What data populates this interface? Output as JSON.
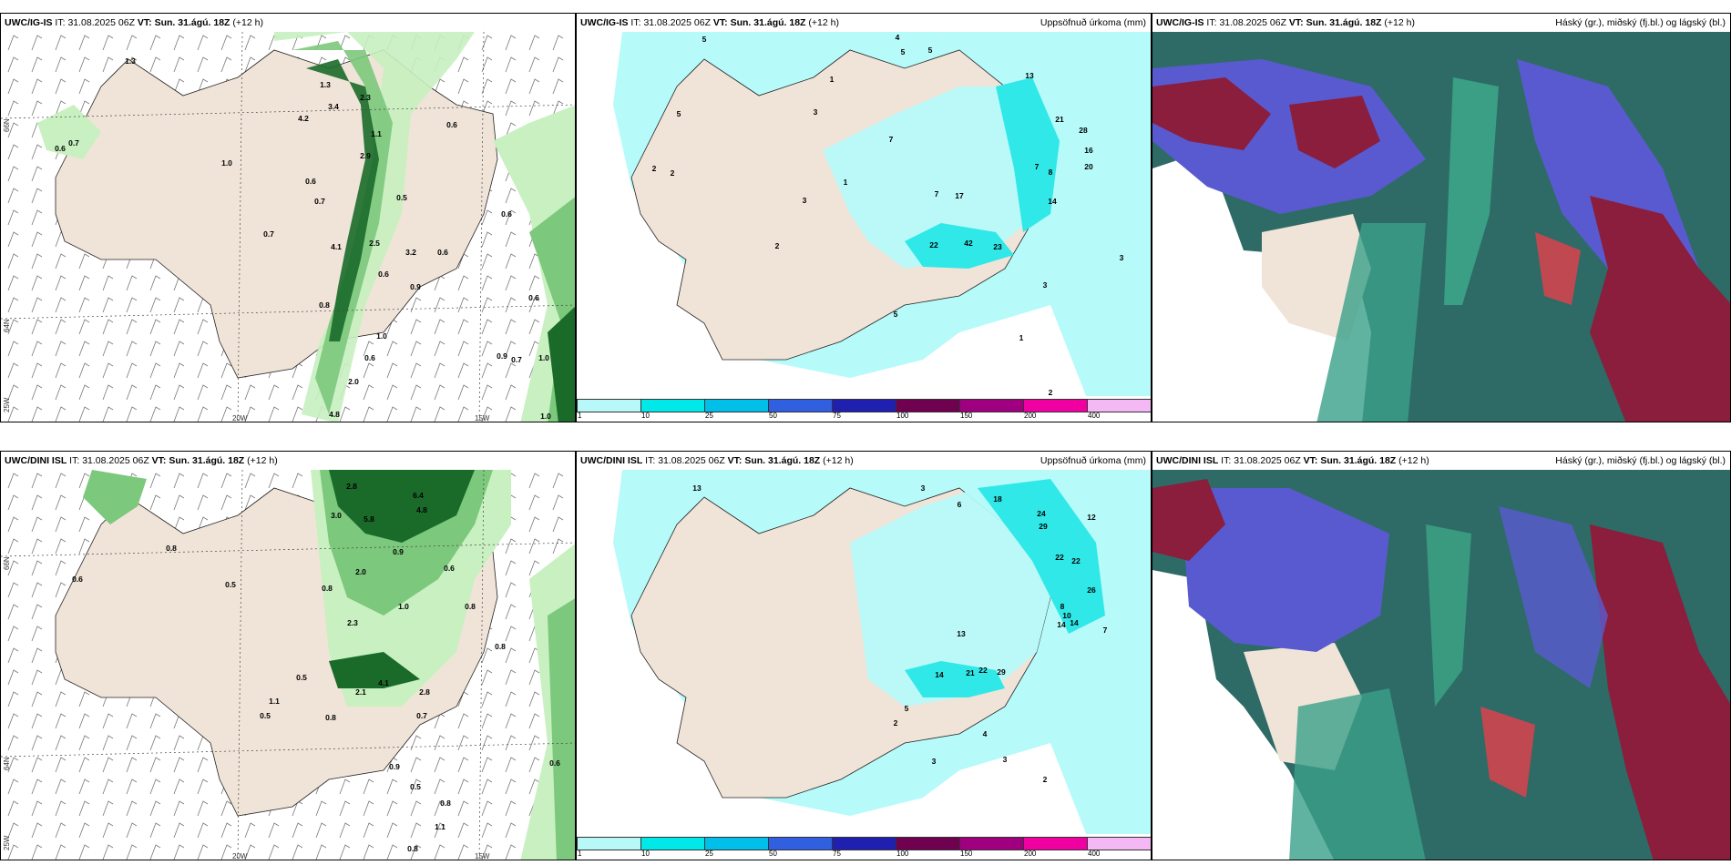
{
  "panels": [
    {
      "model": "UWC/IG-IS",
      "it_label": "IT:",
      "it": "31.08.2025 06Z",
      "vt_label": "VT:",
      "vt": "Sun. 31.ágú. 18Z",
      "lead": "(+12 h)",
      "right": ""
    },
    {
      "model": "UWC/IG-IS",
      "it_label": "IT:",
      "it": "31.08.2025 06Z",
      "vt_label": "VT:",
      "vt": "Sun. 31.ágú. 18Z",
      "lead": "(+12 h)",
      "right": "Uppsöfnuð úrkoma (mm)"
    },
    {
      "model": "UWC/IG-IS",
      "it_label": "IT:",
      "it": "31.08.2025 06Z",
      "vt_label": "VT:",
      "vt": "Sun. 31.ágú. 18Z",
      "lead": "(+12 h)",
      "right": "Háský (gr.), miðský (fj.bl.) og lágský (bl.)"
    },
    {
      "model": "UWC/DINI ISL",
      "it_label": "IT:",
      "it": "31.08.2025 06Z",
      "vt_label": "VT:",
      "vt": "Sun. 31.ágú. 18Z",
      "lead": "(+12 h)",
      "right": ""
    },
    {
      "model": "UWC/DINI ISL",
      "it_label": "IT:",
      "it": "31.08.2025 06Z",
      "vt_label": "VT:",
      "vt": "Sun. 31.ágú. 18Z",
      "lead": "(+12 h)",
      "right": "Uppsöfnuð úrkoma (mm)"
    },
    {
      "model": "UWC/DINI ISL",
      "it_label": "IT:",
      "it": "31.08.2025 06Z",
      "vt_label": "VT:",
      "vt": "Sun. 31.ágú. 18Z",
      "lead": "(+12 h)",
      "right": "Háský (gr.), miðský (fj.bl.) og lágský (bl.)"
    }
  ],
  "axes": {
    "lon_20": "20W",
    "lon_15": "15W",
    "lat_66": "66N",
    "lat_64": "64N",
    "lon_25": "25W"
  },
  "colorbar": {
    "labels": [
      "1",
      "10",
      "25",
      "50",
      "75",
      "100",
      "150",
      "200",
      "400"
    ],
    "colors": [
      "#b8f8f8",
      "#00e8e8",
      "#00bfe8",
      "#3060e0",
      "#2020b0",
      "#700050",
      "#a00080",
      "#f000a0",
      "#f4b8f4"
    ]
  },
  "colors": {
    "land": "#f0e4d8",
    "precip_light": "#b6fafa",
    "precip_mid": "#30e8e8",
    "green_light": "#c8f0c0",
    "green_mid": "#7cc87c",
    "green_dark": "#1a6a2a",
    "cloud_teal": "#2e6b66",
    "cloud_purple": "#5a5ad0",
    "cloud_red": "#8a1e3c"
  },
  "precip_top": [
    "5",
    "4",
    "5",
    "5",
    "3",
    "1",
    "7",
    "7",
    "2",
    "3",
    "5",
    "2",
    "1",
    "2",
    "13",
    "21",
    "28",
    "16",
    "20",
    "17",
    "14",
    "22",
    "42",
    "23",
    "8",
    "7",
    "3",
    "3",
    "1",
    "2",
    "5"
  ],
  "precip_bot": [
    "13",
    "3",
    "6",
    "18",
    "24",
    "29",
    "12",
    "22",
    "22",
    "26",
    "14",
    "14",
    "8",
    "10",
    "14",
    "21",
    "22",
    "29",
    "13",
    "7",
    "3",
    "4",
    "2",
    "3",
    "5",
    "2"
  ],
  "wind_top": [
    "0.6",
    "1.3",
    "0.7",
    "0.6",
    "1.0",
    "3.4",
    "4.2",
    "2.3",
    "2.9",
    "1.3",
    "0.6",
    "0.7",
    "1.1",
    "0.5",
    "0.7",
    "4.1",
    "2.5",
    "3.2",
    "0.6",
    "0.9",
    "0.6",
    "0.8",
    "1.0",
    "0.6",
    "2.0",
    "4.8",
    "0.6",
    "0.6",
    "0.9",
    "1.0",
    "0.7",
    "1.0"
  ],
  "wind_bot": [
    "2.8",
    "6.4",
    "4.8",
    "3.0",
    "5.8",
    "2.0",
    "0.8",
    "0.5",
    "0.8",
    "2.3",
    "1.0",
    "0.9",
    "0.6",
    "0.8",
    "0.5",
    "1.1",
    "2.1",
    "4.1",
    "2.8",
    "0.7",
    "0.9",
    "0.5",
    "0.8",
    "0.6",
    "0.8",
    "0.5",
    "0.8",
    "1.1",
    "0.8",
    "0.6"
  ]
}
